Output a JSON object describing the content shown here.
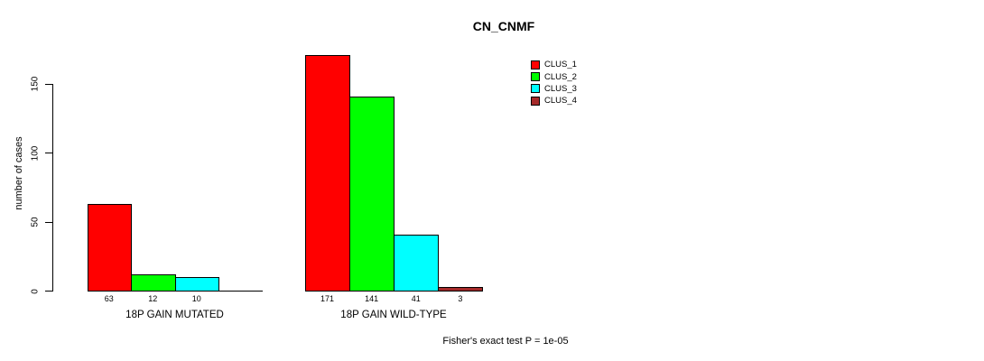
{
  "chart_data": {
    "type": "bar",
    "title": "CN_CNMF",
    "ylabel": "number of cases",
    "xlabel": "",
    "yticks": [
      0,
      50,
      100,
      150
    ],
    "ylim": [
      0,
      171
    ],
    "grid": false,
    "legend_position": "top-right",
    "series": [
      "CLUS_1",
      "CLUS_2",
      "CLUS_3",
      "CLUS_4"
    ],
    "colors": [
      "#ff0000",
      "#00ff00",
      "#00ffff",
      "#a52a2a"
    ],
    "groups": [
      {
        "label": "18P GAIN MUTATED",
        "values": [
          63,
          12,
          10,
          0
        ]
      },
      {
        "label": "18P GAIN WILD-TYPE",
        "values": [
          171,
          141,
          41,
          3
        ]
      }
    ],
    "annotation": "Fisher's exact test P = 1e-05"
  }
}
